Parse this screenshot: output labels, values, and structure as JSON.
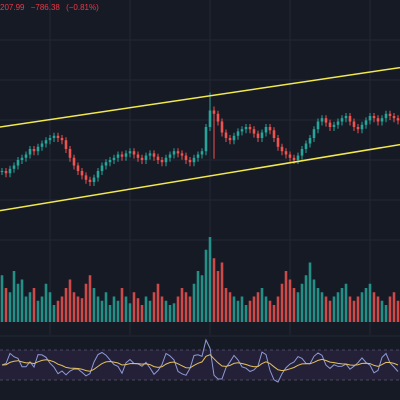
{
  "legend": {
    "price": "207.99",
    "change": "−786.38",
    "change_pct": "(−0.81%)"
  },
  "colors": {
    "background": "#161a25",
    "grid": "#242836",
    "up": "#26a69a",
    "down": "#ef5350",
    "channel": "#f2e94e",
    "rsi_line": "#8e9bd8",
    "rsi_band": "#2a2440",
    "rsi_ma": "#e5c05c"
  },
  "chart_data": {
    "type": "candlestick",
    "channel_lines": {
      "upper": {
        "start": 0.1,
        "end": 0.82
      },
      "lower": {
        "start": 0.78,
        "end": 1.44
      }
    },
    "price": [
      0.9,
      0.88,
      0.92,
      0.95,
      1.0,
      1.02,
      1.05,
      1.1,
      1.08,
      1.12,
      1.15,
      1.18,
      1.2,
      1.22,
      1.2,
      1.18,
      1.1,
      1.02,
      0.95,
      0.9,
      0.86,
      0.82,
      0.8,
      0.84,
      0.9,
      0.95,
      0.98,
      1.0,
      1.02,
      1.05,
      1.03,
      1.06,
      1.08,
      1.05,
      1.02,
      1.0,
      1.04,
      1.06,
      1.03,
      1.0,
      0.98,
      1.02,
      1.05,
      1.08,
      1.06,
      1.04,
      1.0,
      0.98,
      1.02,
      1.05,
      1.08,
      1.3,
      1.45,
      1.42,
      1.35,
      1.25,
      1.2,
      1.18,
      1.22,
      1.26,
      1.28,
      1.3,
      1.28,
      1.24,
      1.2,
      1.25,
      1.3,
      1.27,
      1.2,
      1.12,
      1.08,
      1.05,
      1.02,
      1.0,
      1.04,
      1.1,
      1.15,
      1.2,
      1.28,
      1.35,
      1.38,
      1.34,
      1.3,
      1.32,
      1.35,
      1.38,
      1.4,
      1.35,
      1.3,
      1.28,
      1.32,
      1.36,
      1.4,
      1.38,
      1.35,
      1.38,
      1.42,
      1.4,
      1.38,
      1.36
    ],
    "volume": [
      0.55,
      0.4,
      0.35,
      0.6,
      0.45,
      0.5,
      0.3,
      0.35,
      0.4,
      0.25,
      0.3,
      0.45,
      0.35,
      0.2,
      0.25,
      0.3,
      0.4,
      0.5,
      0.35,
      0.3,
      0.28,
      0.45,
      0.55,
      0.4,
      0.3,
      0.25,
      0.35,
      0.2,
      0.3,
      0.25,
      0.4,
      0.3,
      0.22,
      0.35,
      0.28,
      0.2,
      0.3,
      0.25,
      0.35,
      0.45,
      0.3,
      0.25,
      0.2,
      0.22,
      0.3,
      0.4,
      0.35,
      0.3,
      0.45,
      0.6,
      0.55,
      0.85,
      1.0,
      0.75,
      0.6,
      0.7,
      0.4,
      0.35,
      0.3,
      0.25,
      0.3,
      0.2,
      0.25,
      0.3,
      0.35,
      0.4,
      0.3,
      0.25,
      0.2,
      0.3,
      0.45,
      0.6,
      0.5,
      0.4,
      0.35,
      0.45,
      0.55,
      0.7,
      0.5,
      0.4,
      0.35,
      0.3,
      0.25,
      0.3,
      0.35,
      0.4,
      0.45,
      0.3,
      0.25,
      0.3,
      0.35,
      0.4,
      0.45,
      0.35,
      0.3,
      0.25,
      0.2,
      0.3,
      0.35,
      0.25
    ]
  }
}
